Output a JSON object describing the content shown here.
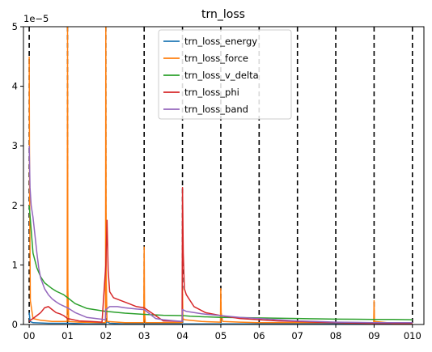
{
  "chart_data": {
    "type": "line",
    "title": "trn_loss",
    "xlabel": "",
    "ylabel": "",
    "y_offset_text": "1e−5",
    "ylim": [
      0,
      5
    ],
    "xlim": [
      -0.15,
      10.3
    ],
    "yticks": [
      0,
      1,
      2,
      3,
      4,
      5
    ],
    "xtick_labels": [
      "00",
      "01",
      "02",
      "03",
      "04",
      "05",
      "06",
      "07",
      "08",
      "09",
      "010"
    ],
    "epoch_boundaries": [
      0,
      1,
      2,
      3,
      4,
      5,
      6,
      7,
      8,
      9,
      10
    ],
    "grid": false,
    "legend_position": "top-center",
    "series": [
      {
        "name": "trn_loss_energy",
        "color": "#1f77b4",
        "x": [
          0,
          0.02,
          0.1,
          0.5,
          0.98,
          1.0,
          1.02,
          1.5,
          2.0,
          2.02,
          2.1,
          2.5,
          3.0,
          3.5,
          4.0,
          4.5,
          5.0,
          6.0,
          7.0,
          8.0,
          9.0,
          10.0
        ],
        "values": [
          0.2,
          0.05,
          0.03,
          0.02,
          0.02,
          0.02,
          0.02,
          0.01,
          0.01,
          0.05,
          0.02,
          0.01,
          0.01,
          0.01,
          0.01,
          0.01,
          0.01,
          0.01,
          0.01,
          0.01,
          0.01,
          0.01
        ]
      },
      {
        "name": "trn_loss_force",
        "color": "#ff7f0e",
        "x": [
          0,
          0.01,
          0.03,
          0.1,
          0.3,
          0.6,
          0.99,
          1.0,
          1.01,
          1.03,
          1.3,
          1.99,
          2.0,
          2.01,
          2.03,
          2.5,
          2.99,
          3.0,
          3.01,
          3.03,
          3.5,
          3.99,
          4.0,
          4.01,
          4.05,
          4.5,
          4.99,
          5.0,
          5.01,
          5.05,
          5.5,
          6.0,
          7.0,
          8.0,
          8.99,
          9.0,
          9.01,
          9.5,
          10.0
        ],
        "values": [
          4.5,
          2.2,
          0.4,
          0.1,
          0.07,
          0.05,
          0.05,
          5.0,
          0.6,
          0.05,
          0.04,
          0.03,
          5.0,
          0.8,
          0.05,
          0.03,
          0.03,
          1.3,
          0.2,
          0.03,
          0.03,
          0.03,
          0.6,
          0.1,
          0.08,
          0.05,
          0.04,
          0.6,
          0.2,
          0.05,
          0.04,
          0.03,
          0.03,
          0.03,
          0.02,
          0.4,
          0.05,
          0.02,
          0.02
        ]
      },
      {
        "name": "trn_loss_v_delta",
        "color": "#2ca02c",
        "x": [
          0,
          0.1,
          0.2,
          0.3,
          0.4,
          0.5,
          0.6,
          0.7,
          0.8,
          0.9,
          1.0,
          1.2,
          1.5,
          2.0,
          2.5,
          3.0,
          3.5,
          4.0,
          4.2,
          4.5,
          5.0,
          5.5,
          6.0,
          6.5,
          7.0,
          7.5,
          8.0,
          8.5,
          9.0,
          9.5,
          10.0
        ],
        "values": [
          2.0,
          1.2,
          0.95,
          0.8,
          0.7,
          0.65,
          0.6,
          0.56,
          0.53,
          0.5,
          0.45,
          0.35,
          0.27,
          0.22,
          0.19,
          0.17,
          0.155,
          0.15,
          0.14,
          0.13,
          0.12,
          0.115,
          0.11,
          0.105,
          0.1,
          0.095,
          0.09,
          0.088,
          0.085,
          0.085,
          0.08
        ]
      },
      {
        "name": "trn_loss_phi",
        "color": "#d62728",
        "x": [
          0,
          0.05,
          0.1,
          0.2,
          0.3,
          0.4,
          0.5,
          0.6,
          0.7,
          0.8,
          0.9,
          1.0,
          1.3,
          1.6,
          1.9,
          2.0,
          2.03,
          2.06,
          2.1,
          2.2,
          2.4,
          2.6,
          2.8,
          3.0,
          3.5,
          3.99,
          4.0,
          4.02,
          4.05,
          4.1,
          4.3,
          4.6,
          5.0,
          5.5,
          6.0,
          6.5,
          7.0,
          7.5,
          8.0,
          8.5,
          9.0,
          9.5,
          10.0
        ],
        "values": [
          0.05,
          0.08,
          0.1,
          0.15,
          0.2,
          0.28,
          0.3,
          0.25,
          0.2,
          0.18,
          0.15,
          0.1,
          0.06,
          0.05,
          0.04,
          1.0,
          1.75,
          0.9,
          0.55,
          0.45,
          0.4,
          0.35,
          0.3,
          0.28,
          0.06,
          0.05,
          2.3,
          1.2,
          0.6,
          0.5,
          0.3,
          0.2,
          0.15,
          0.1,
          0.08,
          0.06,
          0.05,
          0.04,
          0.03,
          0.025,
          0.02,
          0.02,
          0.02
        ]
      },
      {
        "name": "trn_loss_band",
        "color": "#9467bd",
        "x": [
          0,
          0.02,
          0.05,
          0.1,
          0.15,
          0.2,
          0.25,
          0.3,
          0.4,
          0.5,
          0.6,
          0.7,
          0.8,
          0.9,
          1.0,
          1.2,
          1.5,
          1.99,
          2.0,
          2.1,
          2.3,
          2.5,
          2.8,
          3.0,
          3.3,
          3.5,
          3.99,
          4.0,
          4.1,
          4.3,
          4.5,
          5.0,
          5.5,
          6.0,
          6.5,
          7.0,
          7.5,
          8.0,
          8.5,
          9.0,
          9.5,
          10.0
        ],
        "values": [
          3.0,
          2.3,
          2.0,
          1.8,
          1.5,
          1.2,
          0.95,
          0.78,
          0.6,
          0.5,
          0.43,
          0.38,
          0.34,
          0.31,
          0.28,
          0.2,
          0.12,
          0.08,
          0.25,
          0.3,
          0.3,
          0.28,
          0.26,
          0.25,
          0.1,
          0.08,
          0.05,
          0.25,
          0.22,
          0.2,
          0.18,
          0.15,
          0.12,
          0.1,
          0.08,
          0.06,
          0.05,
          0.04,
          0.035,
          0.03,
          0.03,
          0.03
        ]
      }
    ]
  }
}
